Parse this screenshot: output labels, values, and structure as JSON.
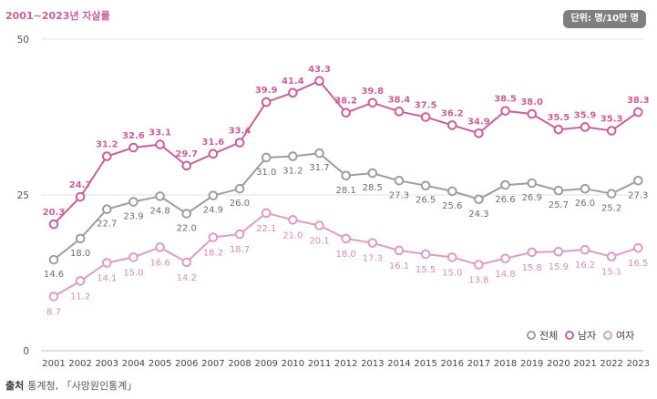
{
  "title": "2001~2023년 자살률",
  "unit": "단위: 명/10만 명",
  "source_label": "출처",
  "source_text": "통계청, 「사망원인통계」",
  "colors": {
    "total": "#9e9e9e",
    "male": "#c9609a",
    "female": "#dc9cc4"
  },
  "chart_data": {
    "type": "line",
    "x": [
      "2001",
      "2002",
      "2003",
      "2004",
      "2005",
      "2006",
      "2007",
      "2008",
      "2009",
      "2010",
      "2011",
      "2012",
      "2013",
      "2014",
      "2015",
      "2016",
      "2017",
      "2018",
      "2019",
      "2020",
      "2021",
      "2022",
      "2023"
    ],
    "ylim": [
      0,
      50
    ],
    "yticks": [
      0,
      25,
      50
    ],
    "grid": true,
    "legend": "bottom-right",
    "series": [
      {
        "key": "total",
        "name": "전체",
        "values": [
          14.6,
          18.0,
          22.7,
          23.9,
          24.8,
          22.0,
          24.9,
          26.0,
          31.0,
          31.2,
          31.7,
          28.1,
          28.5,
          27.3,
          26.5,
          25.6,
          24.3,
          26.6,
          26.9,
          25.7,
          26.0,
          25.2,
          27.3
        ]
      },
      {
        "key": "male",
        "name": "남자",
        "values": [
          20.3,
          24.7,
          31.2,
          32.6,
          33.1,
          29.7,
          31.6,
          33.4,
          39.9,
          41.4,
          43.3,
          38.2,
          39.8,
          38.4,
          37.5,
          36.2,
          34.9,
          38.5,
          38.0,
          35.5,
          35.9,
          35.3,
          38.3
        ]
      },
      {
        "key": "female",
        "name": "여자",
        "values": [
          8.7,
          11.2,
          14.1,
          15.0,
          16.6,
          14.2,
          18.2,
          18.7,
          22.1,
          21.0,
          20.1,
          18.0,
          17.3,
          16.1,
          15.5,
          15.0,
          13.8,
          14.8,
          15.8,
          15.9,
          16.2,
          15.1,
          16.5
        ]
      }
    ]
  }
}
